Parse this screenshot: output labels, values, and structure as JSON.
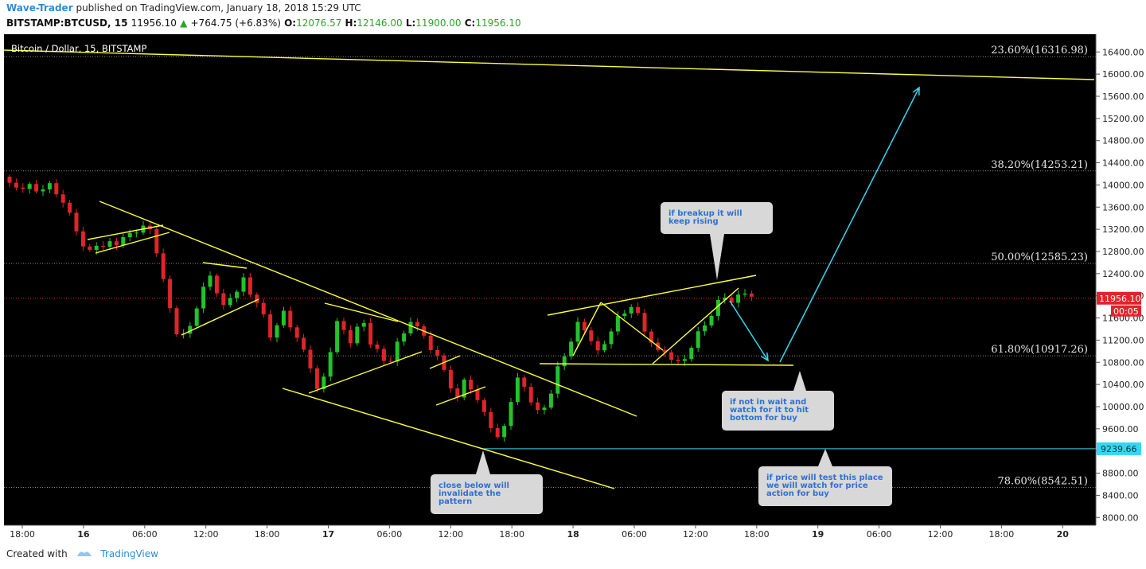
{
  "header": {
    "author": "Wave-Trader",
    "published_text": "published on TradingView.com, January 18, 2018 15:29 UTC",
    "symbol": "BITSTAMP:BTCUSD, 15",
    "last": "11956.10",
    "change": "+764.75 (+6.83%)",
    "o_label": "O:",
    "o_value": "12076.57",
    "h_label": "H:",
    "h_value": "12146.00",
    "l_label": "L:",
    "l_value": "11900.00",
    "c_label": "C:",
    "c_value": "11956.10"
  },
  "footer": {
    "created_with": "Created with",
    "brand": "TradingView"
  },
  "chart_data": {
    "type": "candlestick",
    "title": "Bitcoin / Dollar, 15, BITSTAMP",
    "ylim": [
      7860,
      16720
    ],
    "y_ticks": [
      "16400.00",
      "16000.00",
      "15600.00",
      "15200.00",
      "14800.00",
      "14400.00",
      "14000.00",
      "13600.00",
      "13200.00",
      "12800.00",
      "12400.00",
      "12000.00",
      "11600.00",
      "11200.00",
      "10800.00",
      "10400.00",
      "10000.00",
      "9600.00",
      "9200.00",
      "8800.00",
      "8400.00",
      "8000.00"
    ],
    "x_ticks": [
      "18:00",
      "16",
      "06:00",
      "12:00",
      "18:00",
      "17",
      "06:00",
      "12:00",
      "18:00",
      "18",
      "06:00",
      "12:00",
      "18:00",
      "19",
      "06:00",
      "12:00",
      "18:00",
      "20"
    ],
    "last_price_label": "11956.10",
    "countdown_label": "00:05",
    "level_label": "9239.66",
    "level_value": 9239.66,
    "last_price": 11956.1,
    "fib_levels": [
      {
        "label": "23.60%(16316.98)",
        "value": 16316.98
      },
      {
        "label": "38.20%(14253.21)",
        "value": 14253.21
      },
      {
        "label": "50.00%(12585.23)",
        "value": 12585.23
      },
      {
        "label": "61.80%(10917.26)",
        "value": 10917.26
      },
      {
        "label": "78.60%(8542.51)",
        "value": 8542.51
      }
    ],
    "price_path": [
      [
        0,
        14150
      ],
      [
        1,
        14000
      ],
      [
        2,
        13950
      ],
      [
        3,
        13900
      ],
      [
        4,
        13920
      ],
      [
        5,
        13850
      ],
      [
        6,
        13880
      ],
      [
        7,
        13960
      ],
      [
        8,
        13850
      ],
      [
        9,
        13700
      ],
      [
        10,
        13500
      ],
      [
        11,
        13250
      ],
      [
        12,
        12950
      ],
      [
        13,
        12850
      ],
      [
        14,
        12980
      ],
      [
        15,
        12900
      ],
      [
        16,
        12950
      ],
      [
        17,
        12920
      ],
      [
        18,
        13000
      ],
      [
        19,
        13050
      ],
      [
        20,
        13120
      ],
      [
        21,
        13200
      ],
      [
        22,
        13150
      ],
      [
        23,
        12800
      ],
      [
        24,
        12300
      ],
      [
        25,
        11800
      ],
      [
        26,
        11400
      ],
      [
        27,
        11350
      ],
      [
        28,
        11500
      ],
      [
        29,
        11850
      ],
      [
        30,
        12150
      ],
      [
        31,
        12350
      ],
      [
        32,
        12050
      ],
      [
        33,
        11750
      ],
      [
        34,
        11900
      ],
      [
        35,
        12050
      ],
      [
        36,
        12250
      ],
      [
        37,
        12000
      ],
      [
        38,
        11900
      ],
      [
        39,
        11650
      ],
      [
        40,
        11300
      ],
      [
        41,
        11550
      ],
      [
        42,
        11750
      ],
      [
        43,
        11500
      ],
      [
        44,
        11300
      ],
      [
        45,
        11000
      ],
      [
        46,
        10700
      ],
      [
        47,
        10300
      ],
      [
        48,
        10450
      ],
      [
        49,
        10950
      ],
      [
        50,
        11500
      ],
      [
        51,
        11300
      ],
      [
        52,
        11150
      ],
      [
        53,
        11450
      ],
      [
        54,
        11500
      ],
      [
        55,
        11200
      ],
      [
        56,
        11100
      ],
      [
        57,
        10850
      ],
      [
        58,
        10900
      ],
      [
        59,
        11200
      ],
      [
        60,
        11300
      ],
      [
        61,
        11550
      ],
      [
        62,
        11400
      ],
      [
        63,
        11200
      ],
      [
        64,
        11000
      ],
      [
        65,
        10850
      ],
      [
        66,
        10600
      ],
      [
        67,
        10350
      ],
      [
        68,
        10150
      ],
      [
        69,
        10500
      ],
      [
        70,
        10400
      ],
      [
        71,
        10150
      ],
      [
        72,
        9950
      ],
      [
        73,
        9700
      ],
      [
        74,
        9450
      ],
      [
        75,
        9650
      ],
      [
        76,
        10100
      ],
      [
        77,
        10450
      ],
      [
        78,
        10300
      ],
      [
        79,
        10050
      ],
      [
        80,
        9850
      ],
      [
        81,
        9950
      ],
      [
        82,
        10250
      ],
      [
        83,
        10700
      ],
      [
        84,
        10950
      ],
      [
        85,
        11250
      ],
      [
        86,
        11550
      ],
      [
        87,
        11450
      ],
      [
        88,
        11250
      ],
      [
        89,
        11000
      ],
      [
        90,
        11150
      ],
      [
        91,
        11350
      ],
      [
        92,
        11550
      ],
      [
        93,
        11650
      ],
      [
        94,
        11750
      ],
      [
        95,
        11600
      ],
      [
        96,
        11350
      ],
      [
        97,
        11150
      ],
      [
        98,
        11000
      ],
      [
        99,
        11050
      ],
      [
        100,
        10900
      ],
      [
        101,
        10850
      ],
      [
        102,
        10950
      ],
      [
        103,
        11100
      ],
      [
        104,
        11350
      ],
      [
        105,
        11500
      ],
      [
        106,
        11600
      ],
      [
        107,
        11850
      ],
      [
        108,
        11950
      ],
      [
        109,
        11800
      ],
      [
        110,
        11950
      ],
      [
        111,
        12050
      ],
      [
        112,
        11956
      ]
    ],
    "annotations": [
      {
        "id": "note-breakup",
        "text": [
          "if breakup it will",
          "keep rising"
        ]
      },
      {
        "id": "note-wait",
        "text": [
          "if not in wait and",
          "watch for it to hit",
          "bottom for buy"
        ]
      },
      {
        "id": "note-test",
        "text": [
          "if price will test this place",
          "we will watch for price",
          "action for buy"
        ]
      },
      {
        "id": "note-invalidate",
        "text": [
          "close below will",
          "invalidate the",
          "pattern"
        ]
      }
    ],
    "colors": {
      "background": "#000000",
      "up": "#22c32b",
      "down": "#e0242a",
      "trendline": "#ffff3b",
      "arrow": "#36d7f0",
      "last_price": "#e0242a",
      "level": "#36d7f0",
      "note_bg": "#d8d8d8"
    }
  }
}
